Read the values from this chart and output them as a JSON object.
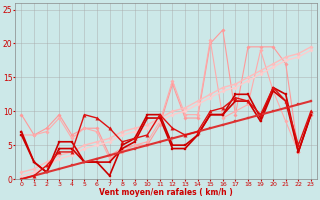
{
  "background_color": "#cce8e8",
  "grid_color": "#aaaaaa",
  "xlabel": "Vent moyen/en rafales ( km/h )",
  "xlabel_color": "#cc0000",
  "ylabel_color": "#cc0000",
  "xlim": [
    -0.5,
    23.5
  ],
  "ylim": [
    0,
    26
  ],
  "yticks": [
    0,
    5,
    10,
    15,
    20,
    25
  ],
  "xticks": [
    0,
    1,
    2,
    3,
    4,
    5,
    6,
    7,
    8,
    9,
    10,
    11,
    12,
    13,
    14,
    15,
    16,
    17,
    18,
    19,
    20,
    21,
    22,
    23
  ],
  "series": [
    {
      "x": [
        0,
        1,
        2,
        3,
        4,
        5,
        6,
        7,
        8,
        9,
        10,
        11,
        12,
        13,
        14,
        15,
        16,
        17,
        18,
        19,
        20,
        21,
        22,
        23
      ],
      "y": [
        9.5,
        6.5,
        7.5,
        9.5,
        6.5,
        7.5,
        7.5,
        3.5,
        4.5,
        5.0,
        5.0,
        8.0,
        14.0,
        9.0,
        9.0,
        20.0,
        22.0,
        9.5,
        19.5,
        19.5,
        19.5,
        17.0,
        4.0,
        9.5
      ],
      "color": "#ff9999",
      "lw": 0.8,
      "marker": "D",
      "ms": 1.8
    },
    {
      "x": [
        0,
        1,
        2,
        3,
        4,
        5,
        6,
        7,
        8,
        9,
        10,
        11,
        12,
        13,
        14,
        15,
        16,
        17,
        18,
        19,
        20,
        21,
        22,
        23
      ],
      "y": [
        6.5,
        6.5,
        7.0,
        9.0,
        6.0,
        7.5,
        7.0,
        3.0,
        4.0,
        5.0,
        5.5,
        8.5,
        14.5,
        9.5,
        9.5,
        20.5,
        9.0,
        10.0,
        11.0,
        19.0,
        13.0,
        8.5,
        4.0,
        9.5
      ],
      "color": "#ffaaaa",
      "lw": 0.8,
      "marker": "D",
      "ms": 1.8
    },
    {
      "x": [
        0,
        1,
        2,
        3,
        4,
        5,
        6,
        7,
        8,
        9,
        10,
        11,
        12,
        13,
        14,
        15,
        16,
        17,
        18,
        19,
        20,
        21,
        22,
        23
      ],
      "y": [
        1.0,
        1.5,
        2.5,
        3.5,
        4.0,
        5.0,
        5.5,
        6.0,
        7.0,
        7.5,
        8.0,
        9.0,
        10.0,
        10.5,
        11.5,
        12.5,
        13.5,
        14.0,
        15.0,
        16.0,
        17.0,
        18.0,
        18.5,
        19.5
      ],
      "color": "#ffbbbb",
      "lw": 1.0,
      "marker": "D",
      "ms": 1.8
    },
    {
      "x": [
        0,
        1,
        2,
        3,
        4,
        5,
        6,
        7,
        8,
        9,
        10,
        11,
        12,
        13,
        14,
        15,
        16,
        17,
        18,
        19,
        20,
        21,
        22,
        23
      ],
      "y": [
        0.5,
        1.0,
        2.0,
        3.0,
        3.5,
        4.5,
        5.0,
        5.5,
        6.5,
        7.0,
        7.5,
        8.5,
        9.5,
        10.0,
        11.0,
        12.0,
        13.0,
        13.5,
        14.5,
        15.5,
        16.5,
        17.5,
        18.0,
        19.0
      ],
      "color": "#ffcccc",
      "lw": 1.0,
      "marker": "D",
      "ms": 1.8
    },
    {
      "x": [
        0,
        1,
        2,
        3,
        4,
        5,
        6,
        7,
        8,
        9,
        10,
        11,
        12,
        13,
        14,
        15,
        16,
        17,
        18,
        19,
        20,
        21,
        22,
        23
      ],
      "y": [
        6.5,
        2.5,
        1.0,
        4.5,
        4.5,
        2.5,
        2.5,
        2.5,
        4.5,
        5.5,
        9.0,
        9.0,
        4.5,
        4.5,
        6.5,
        9.5,
        9.5,
        11.5,
        11.5,
        8.5,
        13.0,
        11.5,
        4.0,
        9.5
      ],
      "color": "#cc0000",
      "lw": 1.2,
      "marker": "s",
      "ms": 2.0
    },
    {
      "x": [
        0,
        1,
        2,
        3,
        4,
        5,
        6,
        7,
        8,
        9,
        10,
        11,
        12,
        13,
        14,
        15,
        16,
        17,
        18,
        19,
        20,
        21,
        22,
        23
      ],
      "y": [
        7.0,
        2.5,
        1.0,
        5.5,
        5.5,
        2.5,
        2.5,
        0.5,
        5.0,
        6.0,
        9.5,
        9.5,
        5.0,
        5.0,
        6.5,
        9.5,
        9.5,
        12.5,
        12.5,
        9.0,
        13.5,
        12.5,
        4.0,
        9.5
      ],
      "color": "#cc0000",
      "lw": 1.2,
      "marker": "s",
      "ms": 2.0
    },
    {
      "x": [
        0,
        1,
        2,
        3,
        4,
        5,
        6,
        7,
        8,
        9,
        10,
        11,
        12,
        13,
        14,
        15,
        16,
        17,
        18,
        19,
        20,
        21,
        22,
        23
      ],
      "y": [
        0.0,
        0.5,
        1.0,
        1.5,
        2.0,
        2.5,
        3.0,
        3.5,
        4.0,
        4.5,
        5.0,
        5.5,
        6.0,
        6.5,
        7.0,
        7.5,
        8.0,
        8.5,
        9.0,
        9.5,
        10.0,
        10.5,
        11.0,
        11.5
      ],
      "color": "#dd3333",
      "lw": 1.5,
      "marker": "s",
      "ms": 2.0
    },
    {
      "x": [
        0,
        1,
        2,
        3,
        4,
        5,
        6,
        7,
        8,
        9,
        10,
        11,
        12,
        13,
        14,
        15,
        16,
        17,
        18,
        19,
        20,
        21,
        22,
        23
      ],
      "y": [
        0.0,
        0.5,
        2.0,
        4.0,
        4.0,
        9.5,
        9.0,
        7.5,
        5.5,
        6.0,
        6.5,
        9.5,
        7.5,
        6.5,
        7.0,
        10.0,
        10.5,
        12.0,
        11.5,
        9.5,
        13.5,
        11.5,
        5.0,
        10.0
      ],
      "color": "#dd1111",
      "lw": 1.0,
      "marker": "^",
      "ms": 2.5
    }
  ]
}
